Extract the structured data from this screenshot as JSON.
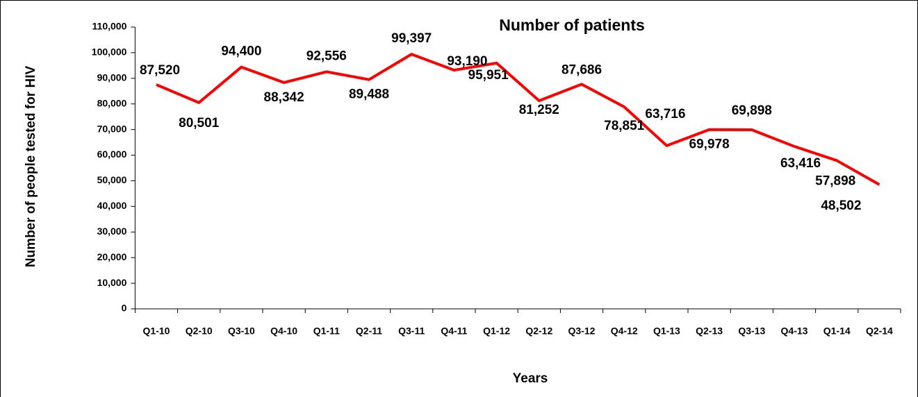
{
  "chart_data": {
    "type": "line",
    "title": "Number of patients",
    "x_label": "Years",
    "y_label": "Number of people tested for HIV",
    "categories": [
      "Q1-10",
      "Q2-10",
      "Q3-10",
      "Q4-10",
      "Q1-11",
      "Q2-11",
      "Q3-11",
      "Q4-11",
      "Q1-12",
      "Q2-12",
      "Q3-12",
      "Q4-12",
      "Q1-13",
      "Q2-13",
      "Q3-13",
      "Q4-13",
      "Q1-14",
      "Q2-14"
    ],
    "series": [
      {
        "name": "Number of patients",
        "color": "#ff0000",
        "values": [
          87520,
          80501,
          94400,
          88342,
          92556,
          89488,
          99397,
          93190,
          95951,
          81252,
          87686,
          78851,
          63716,
          69978,
          69898,
          63416,
          57898,
          48502
        ],
        "value_labels": [
          "87,520",
          "80,501",
          "94,400",
          "88,342",
          "92,556",
          "89,488",
          "99,397",
          "93,190",
          "95,951",
          "81,252",
          "87,686",
          "78,851",
          "63,716",
          "69,978",
          "69,898",
          "63,416",
          "57,898",
          "48,502"
        ]
      }
    ],
    "ylim": [
      0,
      110000
    ],
    "yticks": [
      0,
      {
        "value": 10000,
        "label": "10,000"
      },
      {
        "value": 20000,
        "label": "20,000"
      },
      {
        "value": 30000,
        "label": "30,000"
      },
      {
        "value": 40000,
        "label": "40,000"
      },
      {
        "value": 50000,
        "label": "50,000"
      },
      {
        "value": 60000,
        "label": "60,000"
      },
      {
        "value": 70000,
        "label": "70,000"
      },
      {
        "value": 80000,
        "label": "80,000"
      },
      {
        "value": 90000,
        "label": "90,000"
      },
      {
        "value": 100000,
        "label": "100,000"
      },
      {
        "value": 110000,
        "label": "110,000"
      }
    ],
    "grid": false,
    "legend": false
  }
}
